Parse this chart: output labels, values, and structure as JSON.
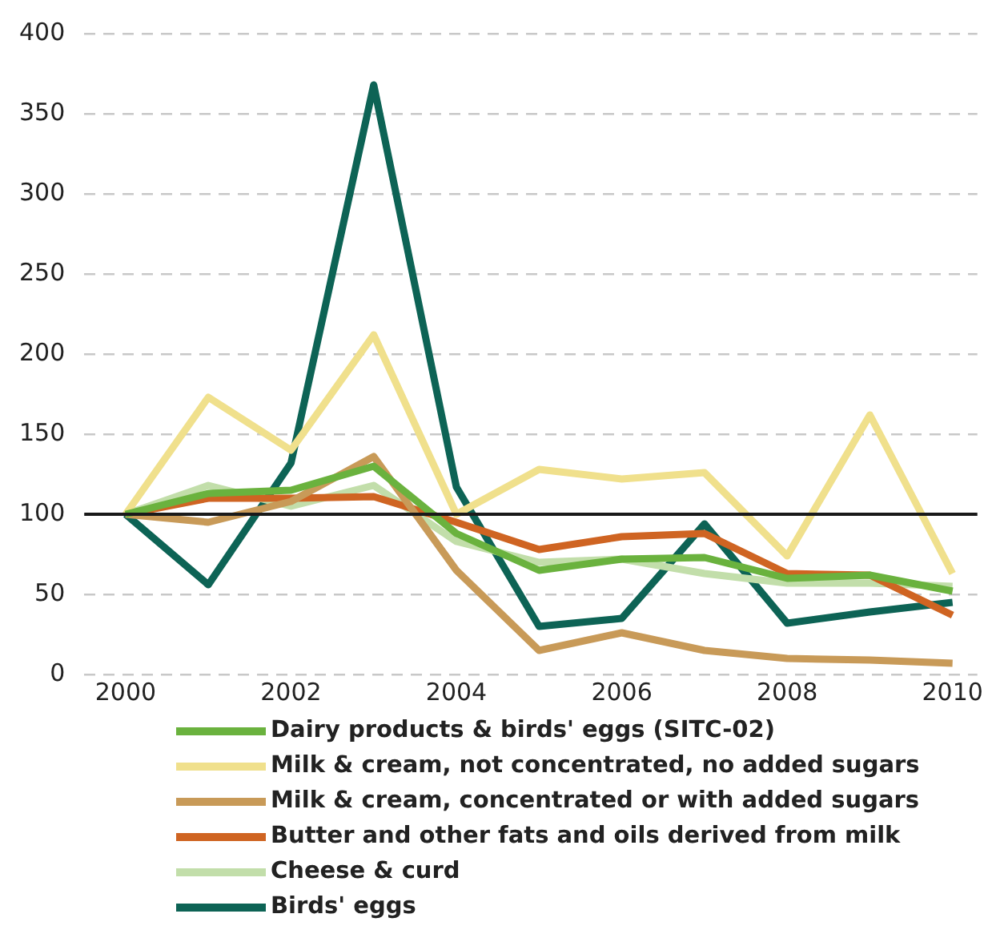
{
  "chart_data": {
    "type": "line",
    "x": [
      2000,
      2001,
      2002,
      2003,
      2004,
      2005,
      2006,
      2007,
      2008,
      2009,
      2010
    ],
    "series": [
      {
        "name": "Dairy products & birds' eggs (SITC-02)",
        "color": "#6ab23e",
        "values": [
          100,
          113,
          115,
          130,
          88,
          65,
          72,
          73,
          60,
          62,
          52
        ]
      },
      {
        "name": "Milk & cream, not concentrated, no added sugars",
        "color": "#f0e08c",
        "values": [
          100,
          173,
          140,
          212,
          100,
          128,
          122,
          126,
          74,
          162,
          63
        ]
      },
      {
        "name": "Milk & cream, concentrated or with added sugars",
        "color": "#c89a58",
        "values": [
          100,
          95,
          108,
          136,
          65,
          15,
          26,
          15,
          10,
          9,
          7
        ]
      },
      {
        "name": "Butter and other fats and oils derived from milk",
        "color": "#cf6422",
        "values": [
          100,
          110,
          110,
          111,
          95,
          78,
          86,
          88,
          63,
          62,
          37
        ]
      },
      {
        "name": "Cheese & curd",
        "color": "#c2deaa",
        "values": [
          100,
          118,
          105,
          118,
          83,
          70,
          72,
          63,
          57,
          57,
          55
        ]
      },
      {
        "name": "Birds' eggs",
        "color": "#0d6355",
        "values": [
          100,
          56,
          132,
          368,
          117,
          30,
          35,
          94,
          32,
          39,
          45
        ]
      }
    ],
    "xlim": [
      1999.5,
      2010.3
    ],
    "xticks": [
      2000,
      2002,
      2004,
      2006,
      2008,
      2010
    ],
    "ylim": [
      0,
      400
    ],
    "yticks": [
      0,
      50,
      100,
      150,
      200,
      250,
      300,
      350,
      400
    ],
    "ref_lines": [
      {
        "axis": "y",
        "value": 100,
        "color": "#1a1a1a"
      }
    ],
    "grid": "y",
    "legend": "bottom",
    "marker": "none",
    "line_style": "solid"
  }
}
